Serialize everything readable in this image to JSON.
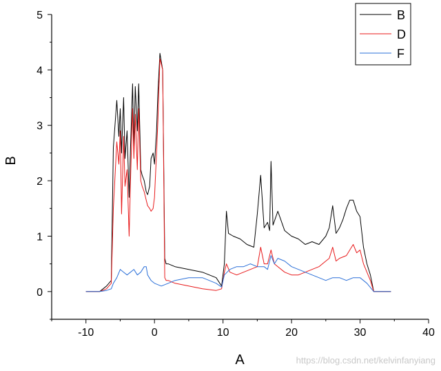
{
  "chart_data": {
    "type": "line",
    "xlabel": "A",
    "ylabel": "B",
    "xlim": [
      -15,
      40
    ],
    "ylim": [
      -0.5,
      5
    ],
    "x_ticks": [
      -10,
      0,
      10,
      20,
      30,
      40
    ],
    "x_tick_labels": [
      "-10",
      "0",
      "10",
      "20",
      "30",
      "40"
    ],
    "y_ticks": [
      0,
      1,
      2,
      3,
      4,
      5
    ],
    "y_tick_labels": [
      "0",
      "1",
      "2",
      "3",
      "4",
      "5"
    ],
    "legend_position": "top-right",
    "grid": false,
    "series": [
      {
        "name": "B",
        "color": "#000000",
        "x": [
          -10,
          -8,
          -7,
          -6.3,
          -6,
          -5.5,
          -5.2,
          -5,
          -4.8,
          -4.5,
          -4.3,
          -4,
          -3.7,
          -3.5,
          -3.2,
          -3,
          -2.8,
          -2.5,
          -2.3,
          -2,
          -1.8,
          -1.5,
          -1.2,
          -1,
          -0.7,
          -0.5,
          -0.2,
          0,
          0.3,
          0.5,
          0.8,
          1.2,
          1.5,
          1.7,
          2,
          3,
          5,
          7,
          9,
          9.8,
          10.2,
          10.5,
          10.8,
          11.5,
          12.5,
          13.5,
          14.5,
          15,
          15.5,
          16,
          16.5,
          16.8,
          17,
          17.3,
          18,
          19,
          20,
          21,
          22,
          23,
          24,
          25,
          25.5,
          26,
          26.5,
          27,
          27.5,
          28,
          28.5,
          29,
          29.5,
          30,
          30.5,
          31,
          31.5,
          32,
          33,
          34.5
        ],
        "y": [
          0,
          0,
          0.1,
          0.2,
          2.6,
          3.45,
          2.8,
          3.3,
          2.5,
          3.5,
          2.4,
          2.9,
          1.7,
          2.6,
          3.75,
          2.6,
          3.7,
          2.9,
          3.75,
          2.2,
          2.1,
          2.0,
          1.8,
          1.75,
          1.9,
          2.4,
          2.5,
          2.3,
          2.9,
          3.6,
          4.3,
          4.0,
          0.6,
          0.5,
          0.5,
          0.45,
          0.4,
          0.35,
          0.25,
          0.1,
          0.5,
          1.45,
          1.05,
          1.0,
          0.95,
          0.85,
          0.8,
          1.4,
          2.1,
          1.15,
          1.25,
          1.1,
          2.35,
          1.2,
          1.45,
          1.1,
          1.0,
          0.95,
          0.85,
          0.9,
          0.85,
          1.0,
          1.15,
          1.55,
          1.05,
          1.15,
          1.3,
          1.5,
          1.65,
          1.65,
          1.45,
          1.35,
          0.8,
          0.5,
          0.3,
          0.0,
          0,
          0
        ]
      },
      {
        "name": "D",
        "color": "#e8191a",
        "x": [
          -10,
          -8,
          -7,
          -6.3,
          -6,
          -5.5,
          -5.2,
          -5,
          -4.8,
          -4.5,
          -4.3,
          -4,
          -3.7,
          -3.5,
          -3.2,
          -3,
          -2.8,
          -2.5,
          -2.3,
          -2,
          -1.8,
          -1.5,
          -1.2,
          -1,
          -0.7,
          -0.5,
          -0.2,
          0,
          0.3,
          0.5,
          0.8,
          1.2,
          1.5,
          1.7,
          2,
          3,
          5,
          7,
          9,
          9.8,
          10.2,
          10.5,
          11,
          12,
          13,
          14,
          15,
          15.5,
          16,
          16.5,
          17,
          17.5,
          18,
          19,
          20,
          21,
          22,
          23,
          24,
          25,
          25.5,
          26,
          26.5,
          27,
          28,
          29,
          29.5,
          30,
          30.5,
          31,
          31.5,
          32,
          33,
          34.5
        ],
        "y": [
          0,
          0,
          0.05,
          0.15,
          1.5,
          2.7,
          2.3,
          2.9,
          1.4,
          2.8,
          1.9,
          2.2,
          1.0,
          2.0,
          3.3,
          2.4,
          3.2,
          2.2,
          3.3,
          2.0,
          1.9,
          1.8,
          1.65,
          1.55,
          1.5,
          1.45,
          1.5,
          1.7,
          2.5,
          3.1,
          4.2,
          4.0,
          0.25,
          0.2,
          0.2,
          0.15,
          0.1,
          0.05,
          0.02,
          0.05,
          0.35,
          0.5,
          0.35,
          0.3,
          0.35,
          0.4,
          0.45,
          0.8,
          0.5,
          0.5,
          0.75,
          0.5,
          0.45,
          0.35,
          0.3,
          0.3,
          0.35,
          0.4,
          0.45,
          0.55,
          0.6,
          0.8,
          0.55,
          0.6,
          0.65,
          0.85,
          0.7,
          0.75,
          0.5,
          0.35,
          0.2,
          0.0,
          0,
          0
        ]
      },
      {
        "name": "F",
        "color": "#2a6fd8",
        "x": [
          -10,
          -8,
          -7,
          -6.3,
          -6,
          -5.5,
          -5,
          -4.5,
          -4,
          -3.5,
          -3,
          -2.5,
          -2,
          -1.5,
          -1.2,
          -1,
          -0.5,
          0,
          1,
          2,
          3,
          5,
          7,
          9,
          9.8,
          10.2,
          11,
          12,
          13,
          14,
          15,
          16,
          16.5,
          17,
          17.5,
          18,
          19,
          20,
          21,
          22,
          23,
          24,
          25,
          26,
          27,
          28,
          29,
          30,
          31,
          32,
          33,
          34.5
        ],
        "y": [
          0,
          0,
          0.02,
          0.05,
          0.15,
          0.25,
          0.4,
          0.35,
          0.3,
          0.35,
          0.4,
          0.3,
          0.35,
          0.45,
          0.45,
          0.3,
          0.2,
          0.15,
          0.1,
          0.15,
          0.2,
          0.25,
          0.25,
          0.15,
          0.08,
          0.3,
          0.4,
          0.45,
          0.45,
          0.5,
          0.45,
          0.45,
          0.4,
          0.65,
          0.5,
          0.6,
          0.55,
          0.45,
          0.4,
          0.35,
          0.3,
          0.25,
          0.2,
          0.25,
          0.25,
          0.2,
          0.25,
          0.25,
          0.15,
          0.0,
          0,
          0
        ]
      }
    ]
  },
  "watermark": "https://blog.csdn.net/kelvinfanyiang"
}
